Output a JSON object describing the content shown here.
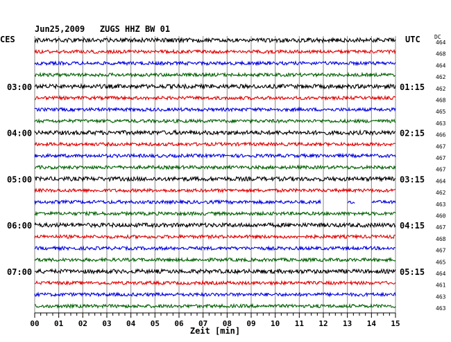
{
  "header": {
    "station": "Jun25,2009   ZUGS HHZ BW 01",
    "left_tz": "CES",
    "right_tz": "UTC",
    "dc_label": "DC"
  },
  "chart_data": {
    "type": "line",
    "xlabel": "Zeit [min]",
    "xlim": [
      0,
      15
    ],
    "x_ticks": [
      "00",
      "01",
      "02",
      "03",
      "04",
      "05",
      "06",
      "07",
      "08",
      "09",
      "10",
      "11",
      "12",
      "13",
      "14",
      "15"
    ],
    "left_time_labels": [
      {
        "row": 4,
        "text": "03:00"
      },
      {
        "row": 8,
        "text": "04:00"
      },
      {
        "row": 12,
        "text": "05:00"
      },
      {
        "row": 16,
        "text": "06:00"
      },
      {
        "row": 20,
        "text": "07:00"
      }
    ],
    "right_time_labels": [
      {
        "row": 4,
        "text": "01:15"
      },
      {
        "row": 8,
        "text": "02:15"
      },
      {
        "row": 12,
        "text": "03:15"
      },
      {
        "row": 16,
        "text": "04:15"
      },
      {
        "row": 20,
        "text": "05:15"
      }
    ],
    "trace_colors": [
      "#000000",
      "#e00000",
      "#0000e0",
      "#006000"
    ],
    "dc_values": [
      "464",
      "468",
      "464",
      "462",
      "462",
      "468",
      "465",
      "463",
      "466",
      "467",
      "467",
      "467",
      "464",
      "462",
      "463",
      "460",
      "467",
      "468",
      "467",
      "465",
      "464",
      "461",
      "463",
      "463"
    ],
    "gaps": [
      {
        "row": 14,
        "from_min": 11.9,
        "to_min": 13.0
      },
      {
        "row": 14,
        "from_min": 13.3,
        "to_min": 14.0
      }
    ]
  }
}
